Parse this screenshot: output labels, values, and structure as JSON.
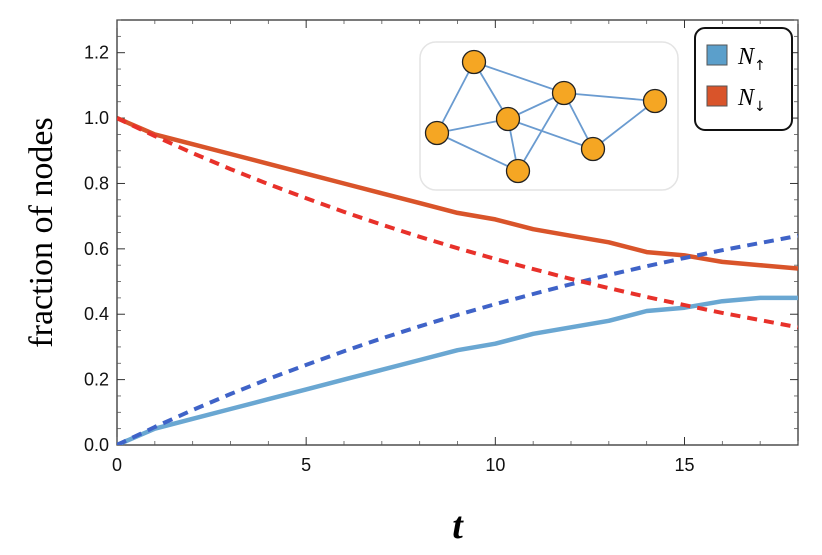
{
  "chart_data": {
    "type": "line",
    "xlabel": "t",
    "ylabel": "fraction of nodes",
    "xlim": [
      0,
      18
    ],
    "ylim": [
      0,
      1.3
    ],
    "x_ticks": [
      0,
      5,
      10,
      15
    ],
    "y_ticks": [
      0.0,
      0.2,
      0.4,
      0.6,
      0.8,
      1.0,
      1.2
    ],
    "x_tick_labels": [
      "0",
      "5",
      "10",
      "15"
    ],
    "y_tick_labels": [
      "0.0",
      "0.2",
      "0.4",
      "0.6",
      "0.8",
      "1.0",
      "1.2"
    ],
    "legend": {
      "placement": "top-right",
      "entries": [
        {
          "symbol": "N",
          "subscript": "↑",
          "color": "#5b9fcb"
        },
        {
          "symbol": "N",
          "subscript": "↓",
          "color": "#d9542a"
        }
      ]
    },
    "series": [
      {
        "legend_ref": "N↑ (simulation)",
        "style": "solid",
        "color": "#6aa7d2",
        "x": [
          0,
          1,
          2,
          3,
          4,
          5,
          6,
          7,
          8,
          9,
          10,
          11,
          12,
          13,
          14,
          15,
          16,
          17,
          18
        ],
        "y": [
          0.0,
          0.05,
          0.08,
          0.11,
          0.14,
          0.17,
          0.2,
          0.23,
          0.26,
          0.29,
          0.31,
          0.34,
          0.36,
          0.38,
          0.41,
          0.42,
          0.44,
          0.45,
          0.45
        ]
      },
      {
        "legend_ref": "N↓ (simulation)",
        "style": "solid",
        "color": "#d9542a",
        "x": [
          0,
          1,
          2,
          3,
          4,
          5,
          6,
          7,
          8,
          9,
          10,
          11,
          12,
          13,
          14,
          15,
          16,
          17,
          18
        ],
        "y": [
          1.0,
          0.95,
          0.92,
          0.89,
          0.86,
          0.83,
          0.8,
          0.77,
          0.74,
          0.71,
          0.69,
          0.66,
          0.64,
          0.62,
          0.59,
          0.58,
          0.56,
          0.55,
          0.54
        ]
      },
      {
        "legend_ref": "N↑ (theory)",
        "style": "dashed",
        "color": "#3f63c8",
        "x": [
          0,
          1,
          2,
          3,
          4,
          5,
          6,
          7,
          8,
          9,
          10,
          11,
          12,
          13,
          14,
          15,
          16,
          17,
          18
        ],
        "y": [
          0.0,
          0.055,
          0.107,
          0.156,
          0.202,
          0.245,
          0.287,
          0.326,
          0.363,
          0.398,
          0.431,
          0.462,
          0.492,
          0.52,
          0.547,
          0.572,
          0.596,
          0.618,
          0.64
        ]
      },
      {
        "legend_ref": "N↓ (theory)",
        "style": "dashed",
        "color": "#e8312a",
        "x": [
          0,
          1,
          2,
          3,
          4,
          5,
          6,
          7,
          8,
          9,
          10,
          11,
          12,
          13,
          14,
          15,
          16,
          17,
          18
        ],
        "y": [
          1.0,
          0.945,
          0.893,
          0.844,
          0.798,
          0.755,
          0.713,
          0.674,
          0.637,
          0.602,
          0.569,
          0.538,
          0.508,
          0.48,
          0.453,
          0.428,
          0.404,
          0.382,
          0.36
        ]
      }
    ],
    "inset_network": {
      "node_color": "#f5a623",
      "edge_color": "#6a9bd0",
      "node_count": 7,
      "edge_count": 12
    }
  }
}
